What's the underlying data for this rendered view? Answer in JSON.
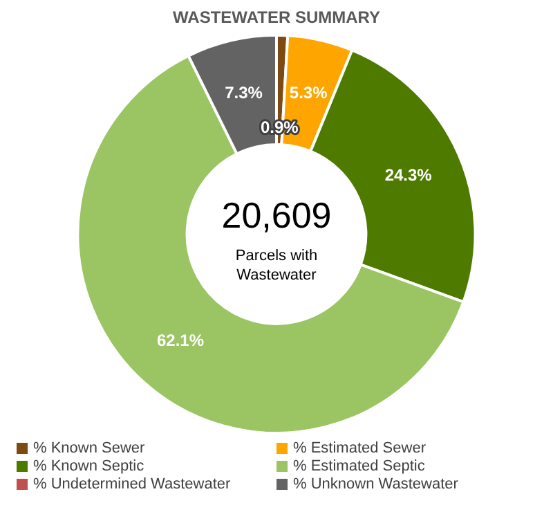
{
  "chart_data": {
    "type": "donut",
    "title": "WASTEWATER SUMMARY",
    "categories": [
      "% Known Sewer",
      "% Estimated Sewer",
      "% Known Septic",
      "% Estimated Septic",
      "% Undetermined Wastewater",
      "% Unknown Wastewater"
    ],
    "values": [
      0.9,
      5.3,
      24.3,
      62.1,
      0,
      7.3
    ],
    "colors": [
      "#7f4a12",
      "#ffa500",
      "#4f7a00",
      "#9bc462",
      "#c0504d",
      "#636363"
    ],
    "value_labels": [
      "0.9%",
      "5.3%",
      "24.3%",
      "62.1%",
      null,
      "7.3%"
    ],
    "annotations": [
      "20,609",
      "Parcels with Wastewater"
    ],
    "legend": "bottom"
  }
}
